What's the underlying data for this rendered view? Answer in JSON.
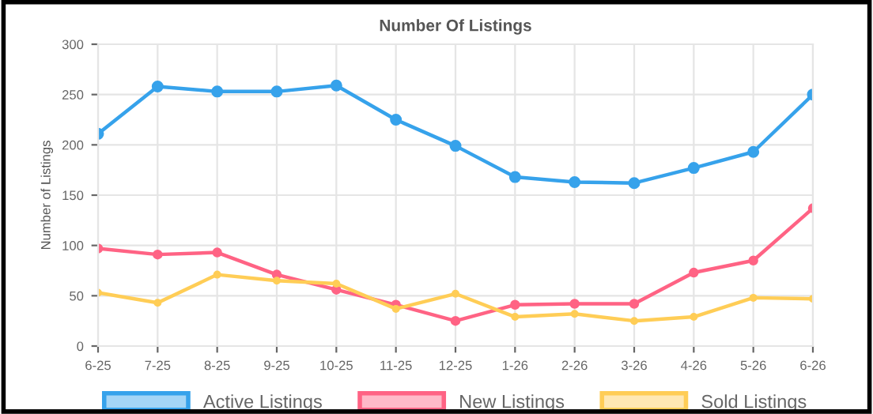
{
  "chart_data": {
    "type": "line",
    "title": "Number Of Listings",
    "ylabel": "Number of Listings",
    "categories": [
      "6-25",
      "7-25",
      "8-25",
      "9-25",
      "10-25",
      "11-25",
      "12-25",
      "1-26",
      "2-26",
      "3-26",
      "4-26",
      "5-26",
      "6-26"
    ],
    "series": [
      {
        "name": "Active Listings",
        "color": "#36a2eb",
        "values": [
          211,
          258,
          253,
          253,
          259,
          225,
          199,
          168,
          163,
          162,
          177,
          193,
          250
        ]
      },
      {
        "name": "New Listings",
        "color": "#ff6384",
        "values": [
          97,
          91,
          93,
          71,
          56,
          41,
          25,
          41,
          42,
          42,
          73,
          85,
          137
        ]
      },
      {
        "name": "Sold Listings",
        "color": "#ffcd56",
        "values": [
          53,
          43,
          71,
          65,
          62,
          37,
          52,
          29,
          32,
          25,
          29,
          48,
          47
        ]
      }
    ],
    "ylim": [
      0,
      300
    ],
    "yticks": [
      0,
      50,
      100,
      150,
      200,
      250,
      300
    ],
    "grid": true,
    "legend": "bottom",
    "marker": "circle",
    "line_style": "solid"
  }
}
